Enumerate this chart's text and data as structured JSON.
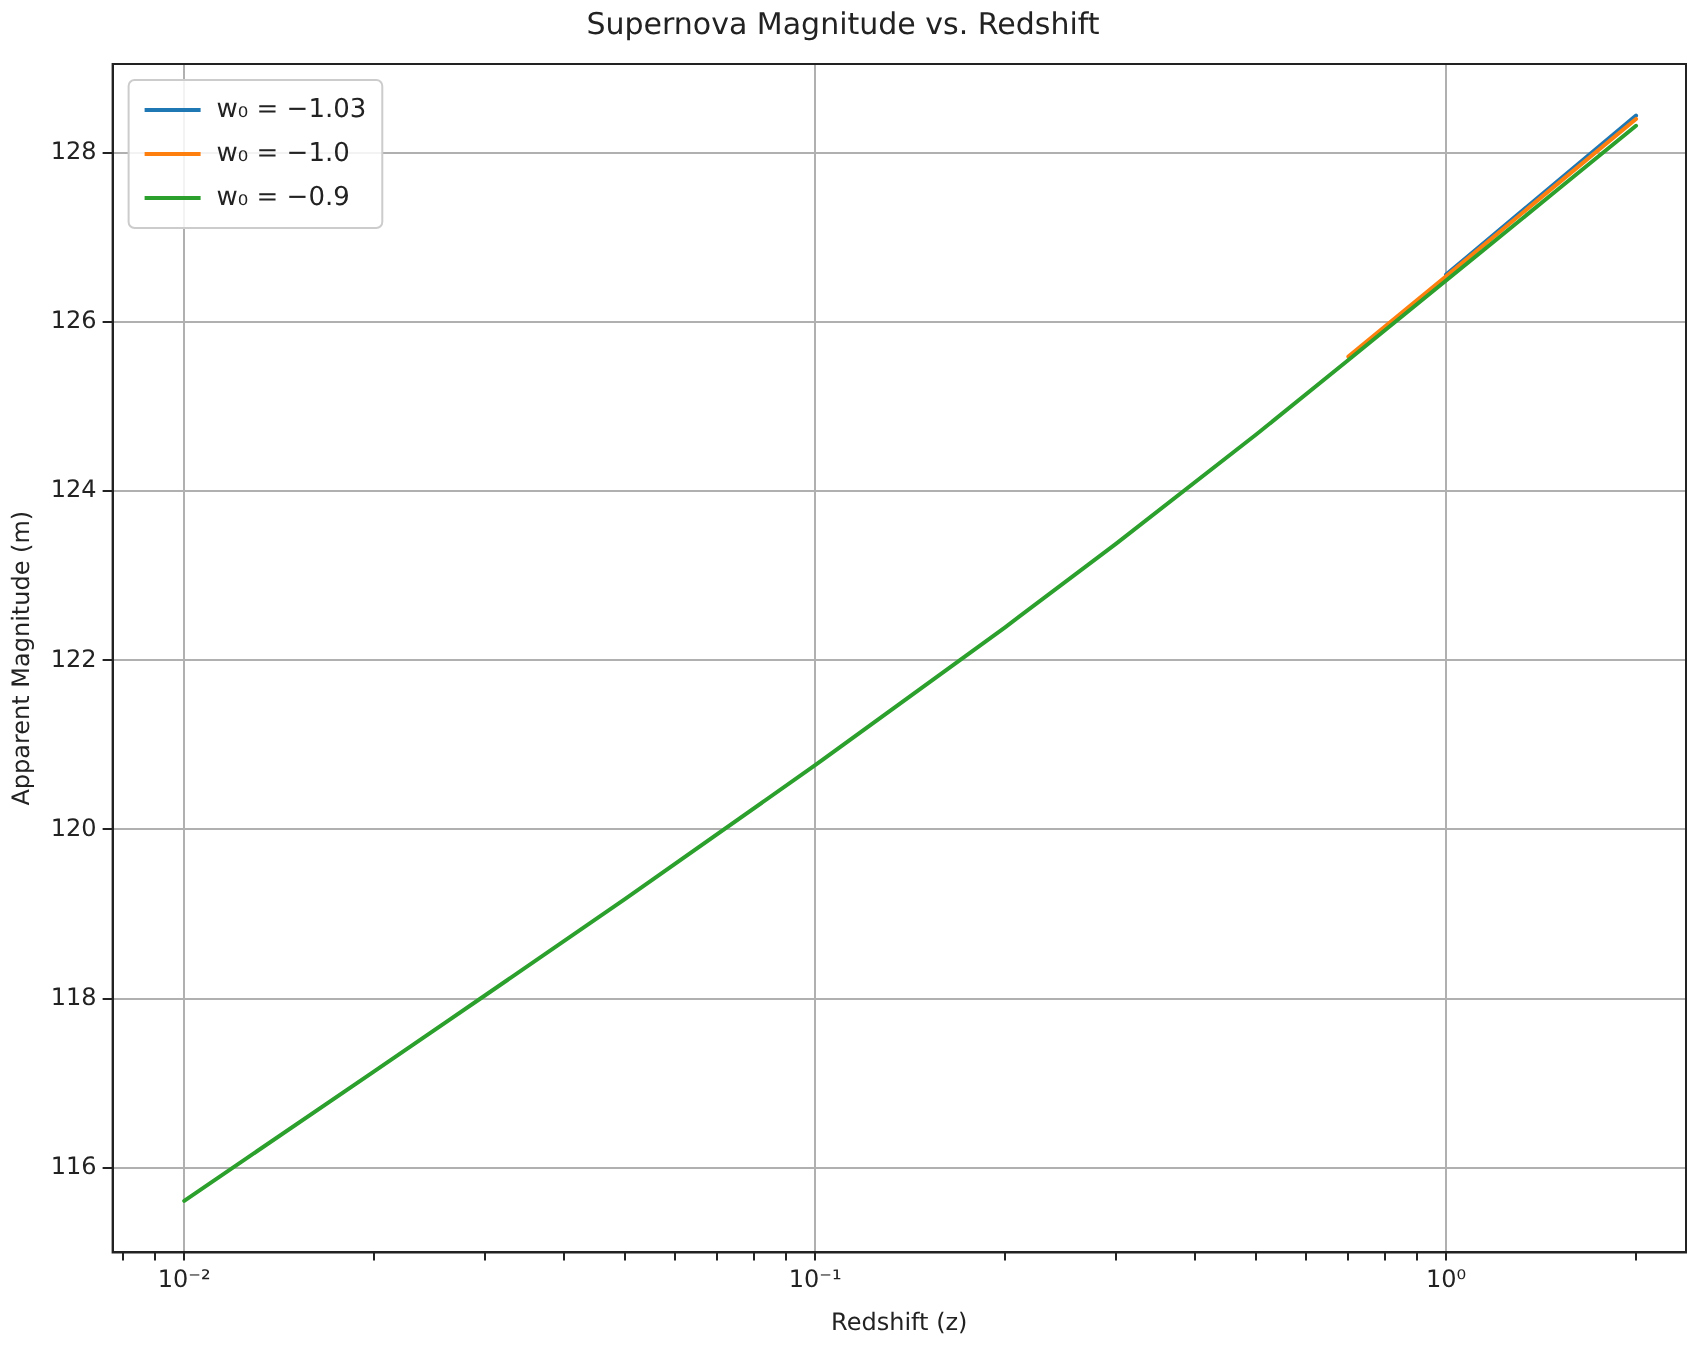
{
  "chart_data": {
    "type": "line",
    "title": "Supernova Magnitude vs. Redshift",
    "xlabel": "Redshift (z)",
    "ylabel": "Apparent Magnitude (m)",
    "x": [
      0.01,
      0.02,
      0.03,
      0.05,
      0.1,
      0.2,
      0.3,
      0.5,
      0.7,
      1.0,
      1.5,
      2.0
    ],
    "series": [
      {
        "name": "w₀ = −1.03",
        "color": "#1f77b4",
        "values": [
          null,
          null,
          null,
          null,
          null,
          null,
          null,
          null,
          null,
          126.56,
          127.66,
          128.44
        ]
      },
      {
        "name": "w₀ = −1.0",
        "color": "#ff7f0e",
        "values": [
          null,
          null,
          null,
          null,
          null,
          null,
          null,
          null,
          125.59,
          126.54,
          127.63,
          128.4
        ]
      },
      {
        "name": "w₀ = −0.9",
        "color": "#2ca02c",
        "values": [
          115.61,
          117.14,
          118.04,
          119.18,
          120.76,
          122.39,
          123.38,
          124.67,
          125.55,
          126.49,
          127.56,
          128.32
        ]
      }
    ],
    "log": "x",
    "xlim": [
      0.0077,
      2.4
    ],
    "ylim": [
      115.0,
      129.05
    ],
    "xticks": [
      {
        "value": 0.008,
        "label": null
      },
      {
        "value": 0.009,
        "label": null
      },
      {
        "value": 0.01,
        "label": "10⁻²"
      },
      {
        "value": 0.02,
        "label": null
      },
      {
        "value": 0.03,
        "label": null
      },
      {
        "value": 0.04,
        "label": null
      },
      {
        "value": 0.05,
        "label": null
      },
      {
        "value": 0.06,
        "label": null
      },
      {
        "value": 0.07,
        "label": null
      },
      {
        "value": 0.08,
        "label": null
      },
      {
        "value": 0.09,
        "label": null
      },
      {
        "value": 0.1,
        "label": "10⁻¹"
      },
      {
        "value": 0.2,
        "label": null
      },
      {
        "value": 0.3,
        "label": null
      },
      {
        "value": 0.4,
        "label": null
      },
      {
        "value": 0.5,
        "label": null
      },
      {
        "value": 0.6,
        "label": null
      },
      {
        "value": 0.7,
        "label": null
      },
      {
        "value": 0.8,
        "label": null
      },
      {
        "value": 0.9,
        "label": null
      },
      {
        "value": 1,
        "label": "10⁰"
      },
      {
        "value": 2,
        "label": null
      }
    ],
    "yticks": [
      116,
      118,
      120,
      122,
      124,
      126,
      128
    ],
    "grid": true,
    "legend": "top left",
    "marker": "none",
    "line_style": "solid"
  }
}
